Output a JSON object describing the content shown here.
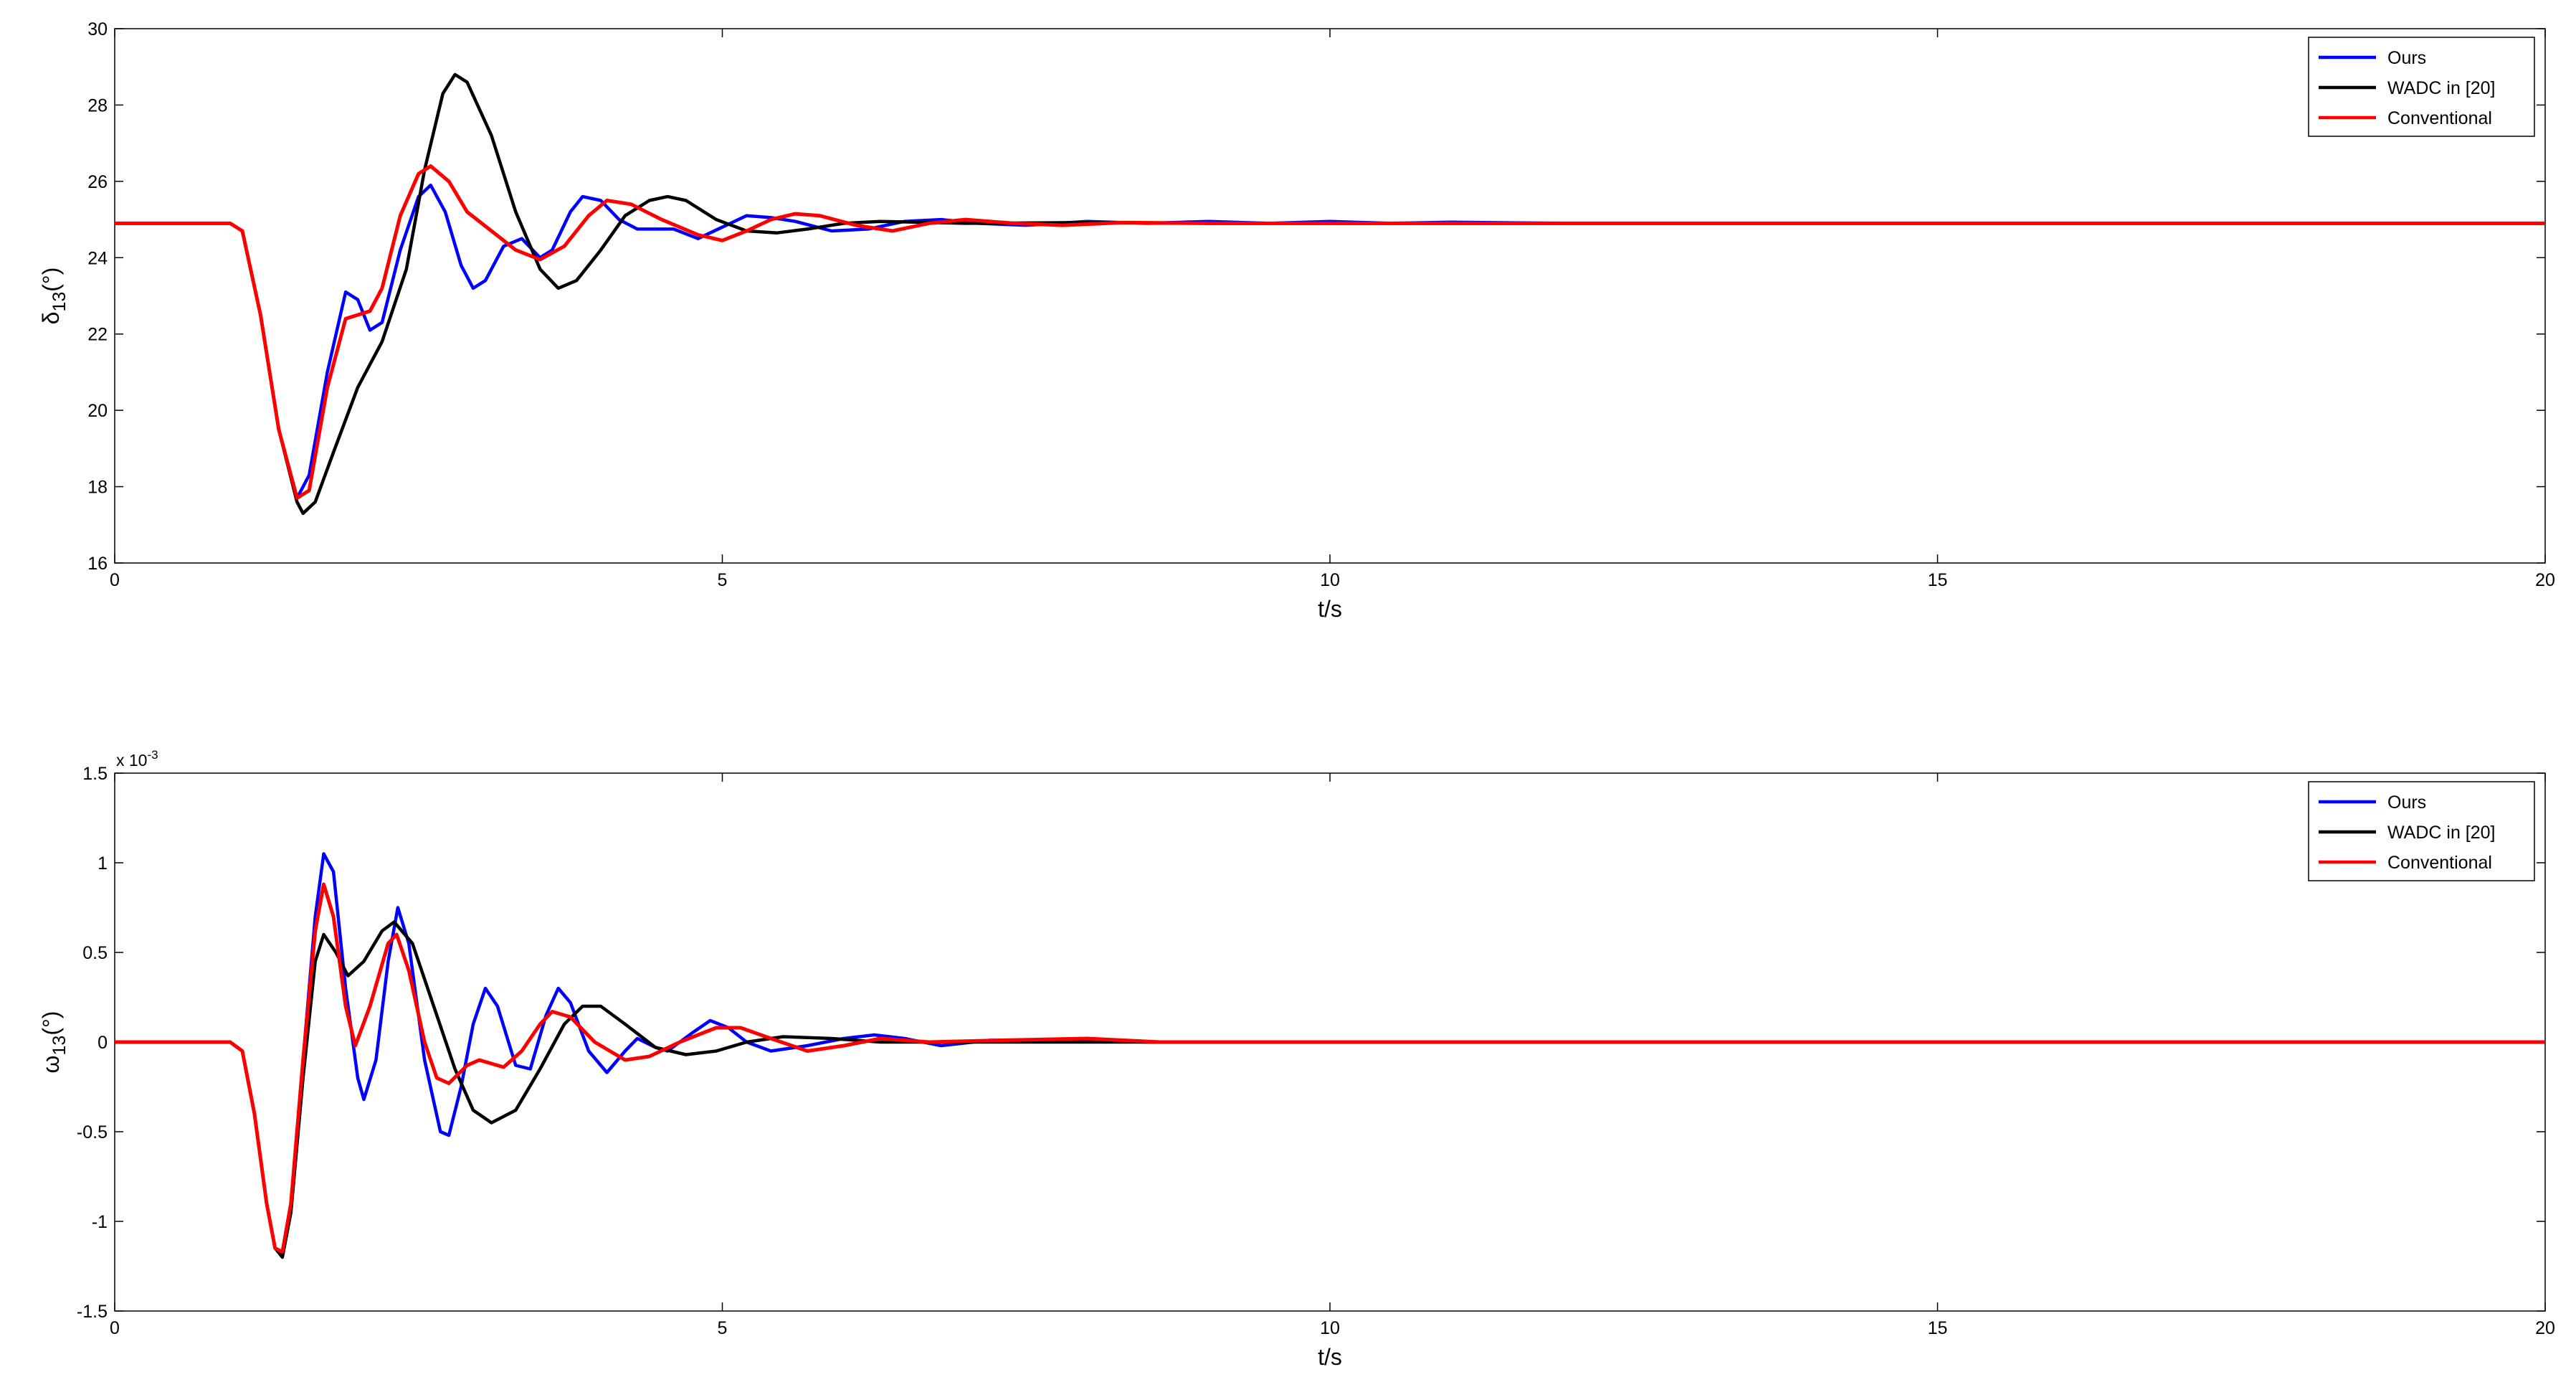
{
  "chart_data": [
    {
      "type": "line",
      "xlabel": "t/s",
      "ylabel": "δ",
      "ylabel_sub": "13",
      "ylabel_unit": "(°)",
      "xlim": [
        0,
        20
      ],
      "ylim": [
        16,
        30
      ],
      "x_ticks": [
        0,
        5,
        10,
        15,
        20
      ],
      "y_ticks": [
        16,
        18,
        20,
        22,
        24,
        26,
        28,
        30
      ],
      "grid": false,
      "legend_position": "top-right",
      "series": [
        {
          "name": "Ours",
          "color": "#0000ff",
          "points": [
            [
              0,
              24.9
            ],
            [
              0.95,
              24.9
            ],
            [
              1.05,
              24.7
            ],
            [
              1.2,
              22.5
            ],
            [
              1.35,
              19.5
            ],
            [
              1.5,
              17.7
            ],
            [
              1.6,
              18.3
            ],
            [
              1.75,
              21.0
            ],
            [
              1.9,
              23.1
            ],
            [
              2.0,
              22.9
            ],
            [
              2.1,
              22.1
            ],
            [
              2.2,
              22.3
            ],
            [
              2.35,
              24.2
            ],
            [
              2.5,
              25.6
            ],
            [
              2.6,
              25.9
            ],
            [
              2.72,
              25.2
            ],
            [
              2.85,
              23.8
            ],
            [
              2.95,
              23.2
            ],
            [
              3.05,
              23.4
            ],
            [
              3.2,
              24.3
            ],
            [
              3.35,
              24.5
            ],
            [
              3.5,
              24.0
            ],
            [
              3.6,
              24.2
            ],
            [
              3.75,
              25.2
            ],
            [
              3.85,
              25.6
            ],
            [
              4.0,
              25.5
            ],
            [
              4.15,
              25.0
            ],
            [
              4.3,
              24.75
            ],
            [
              4.6,
              24.75
            ],
            [
              4.8,
              24.5
            ],
            [
              5.0,
              24.8
            ],
            [
              5.2,
              25.1
            ],
            [
              5.4,
              25.05
            ],
            [
              5.6,
              24.95
            ],
            [
              5.9,
              24.7
            ],
            [
              6.2,
              24.75
            ],
            [
              6.5,
              24.95
            ],
            [
              6.8,
              25.0
            ],
            [
              7.1,
              24.9
            ],
            [
              7.5,
              24.85
            ],
            [
              8.0,
              24.95
            ],
            [
              8.5,
              24.9
            ],
            [
              9.0,
              24.95
            ],
            [
              9.5,
              24.9
            ],
            [
              10.0,
              24.95
            ],
            [
              10.5,
              24.9
            ],
            [
              11.0,
              24.93
            ],
            [
              12.0,
              24.9
            ],
            [
              20,
              24.9
            ]
          ]
        },
        {
          "name": "WADC in [20]",
          "color": "#000000",
          "points": [
            [
              0,
              24.9
            ],
            [
              0.95,
              24.9
            ],
            [
              1.05,
              24.7
            ],
            [
              1.2,
              22.5
            ],
            [
              1.35,
              19.5
            ],
            [
              1.5,
              17.6
            ],
            [
              1.55,
              17.3
            ],
            [
              1.65,
              17.6
            ],
            [
              1.8,
              18.9
            ],
            [
              2.0,
              20.6
            ],
            [
              2.2,
              21.8
            ],
            [
              2.4,
              23.7
            ],
            [
              2.55,
              26.3
            ],
            [
              2.7,
              28.3
            ],
            [
              2.8,
              28.8
            ],
            [
              2.9,
              28.6
            ],
            [
              3.1,
              27.2
            ],
            [
              3.3,
              25.2
            ],
            [
              3.5,
              23.7
            ],
            [
              3.65,
              23.2
            ],
            [
              3.8,
              23.4
            ],
            [
              4.0,
              24.2
            ],
            [
              4.2,
              25.1
            ],
            [
              4.4,
              25.5
            ],
            [
              4.55,
              25.6
            ],
            [
              4.7,
              25.5
            ],
            [
              4.95,
              25.0
            ],
            [
              5.2,
              24.7
            ],
            [
              5.45,
              24.65
            ],
            [
              5.7,
              24.75
            ],
            [
              6.0,
              24.9
            ],
            [
              6.3,
              24.95
            ],
            [
              7.0,
              24.9
            ],
            [
              8.0,
              24.92
            ],
            [
              9.0,
              24.9
            ],
            [
              20,
              24.9
            ]
          ]
        },
        {
          "name": "Conventional",
          "color": "#ff0000",
          "points": [
            [
              0,
              24.9
            ],
            [
              0.95,
              24.9
            ],
            [
              1.05,
              24.7
            ],
            [
              1.2,
              22.5
            ],
            [
              1.35,
              19.5
            ],
            [
              1.5,
              17.7
            ],
            [
              1.6,
              17.9
            ],
            [
              1.75,
              20.6
            ],
            [
              1.9,
              22.4
            ],
            [
              2.1,
              22.6
            ],
            [
              2.2,
              23.2
            ],
            [
              2.35,
              25.1
            ],
            [
              2.5,
              26.2
            ],
            [
              2.6,
              26.4
            ],
            [
              2.75,
              26.0
            ],
            [
              2.9,
              25.2
            ],
            [
              3.1,
              24.7
            ],
            [
              3.3,
              24.2
            ],
            [
              3.5,
              23.95
            ],
            [
              3.7,
              24.3
            ],
            [
              3.9,
              25.1
            ],
            [
              4.05,
              25.5
            ],
            [
              4.25,
              25.4
            ],
            [
              4.5,
              25.0
            ],
            [
              4.8,
              24.6
            ],
            [
              5.0,
              24.45
            ],
            [
              5.2,
              24.7
            ],
            [
              5.4,
              25.0
            ],
            [
              5.6,
              25.15
            ],
            [
              5.8,
              25.1
            ],
            [
              6.1,
              24.85
            ],
            [
              6.4,
              24.7
            ],
            [
              6.7,
              24.9
            ],
            [
              7.0,
              25.0
            ],
            [
              7.4,
              24.9
            ],
            [
              7.8,
              24.85
            ],
            [
              8.3,
              24.92
            ],
            [
              9.0,
              24.9
            ],
            [
              20,
              24.9
            ]
          ]
        }
      ]
    },
    {
      "type": "line",
      "xlabel": "t/s",
      "ylabel": "ω",
      "ylabel_sub": "13",
      "ylabel_unit": "(°)",
      "y_multiplier": "x 10",
      "y_multiplier_exp": "-3",
      "xlim": [
        0,
        20
      ],
      "ylim": [
        -1.5,
        1.5
      ],
      "x_ticks": [
        0,
        5,
        10,
        15,
        20
      ],
      "y_ticks": [
        -1.5,
        -1,
        -0.5,
        0,
        0.5,
        1,
        1.5
      ],
      "grid": false,
      "legend_position": "top-right",
      "series": [
        {
          "name": "Ours",
          "color": "#0000ff",
          "points": [
            [
              0,
              0
            ],
            [
              0.95,
              0
            ],
            [
              1.05,
              -0.05
            ],
            [
              1.15,
              -0.4
            ],
            [
              1.25,
              -0.9
            ],
            [
              1.32,
              -1.15
            ],
            [
              1.38,
              -1.17
            ],
            [
              1.45,
              -0.9
            ],
            [
              1.55,
              -0.1
            ],
            [
              1.65,
              0.7
            ],
            [
              1.72,
              1.05
            ],
            [
              1.8,
              0.95
            ],
            [
              1.9,
              0.3
            ],
            [
              2.0,
              -0.2
            ],
            [
              2.05,
              -0.32
            ],
            [
              2.15,
              -0.1
            ],
            [
              2.25,
              0.45
            ],
            [
              2.33,
              0.75
            ],
            [
              2.42,
              0.55
            ],
            [
              2.55,
              -0.1
            ],
            [
              2.68,
              -0.5
            ],
            [
              2.75,
              -0.52
            ],
            [
              2.85,
              -0.25
            ],
            [
              2.95,
              0.1
            ],
            [
              3.05,
              0.3
            ],
            [
              3.15,
              0.2
            ],
            [
              3.3,
              -0.13
            ],
            [
              3.42,
              -0.15
            ],
            [
              3.55,
              0.15
            ],
            [
              3.65,
              0.3
            ],
            [
              3.75,
              0.22
            ],
            [
              3.9,
              -0.05
            ],
            [
              4.05,
              -0.17
            ],
            [
              4.2,
              -0.05
            ],
            [
              4.3,
              0.02
            ],
            [
              4.45,
              -0.03
            ],
            [
              4.55,
              -0.05
            ],
            [
              4.75,
              0.05
            ],
            [
              4.9,
              0.12
            ],
            [
              5.05,
              0.08
            ],
            [
              5.2,
              0.0
            ],
            [
              5.4,
              -0.05
            ],
            [
              5.7,
              -0.02
            ],
            [
              6.0,
              0.02
            ],
            [
              6.25,
              0.04
            ],
            [
              6.5,
              0.02
            ],
            [
              6.8,
              -0.02
            ],
            [
              7.2,
              0.01
            ],
            [
              7.8,
              0.01
            ],
            [
              8.5,
              0.0
            ],
            [
              20,
              0
            ]
          ]
        },
        {
          "name": "WADC in [20]",
          "color": "#000000",
          "points": [
            [
              0,
              0
            ],
            [
              0.95,
              0
            ],
            [
              1.05,
              -0.05
            ],
            [
              1.15,
              -0.4
            ],
            [
              1.25,
              -0.9
            ],
            [
              1.32,
              -1.15
            ],
            [
              1.38,
              -1.2
            ],
            [
              1.45,
              -0.95
            ],
            [
              1.55,
              -0.2
            ],
            [
              1.65,
              0.45
            ],
            [
              1.72,
              0.6
            ],
            [
              1.82,
              0.5
            ],
            [
              1.92,
              0.37
            ],
            [
              2.05,
              0.45
            ],
            [
              2.2,
              0.62
            ],
            [
              2.3,
              0.67
            ],
            [
              2.45,
              0.55
            ],
            [
              2.65,
              0.15
            ],
            [
              2.8,
              -0.15
            ],
            [
              2.95,
              -0.38
            ],
            [
              3.1,
              -0.45
            ],
            [
              3.3,
              -0.38
            ],
            [
              3.5,
              -0.15
            ],
            [
              3.7,
              0.1
            ],
            [
              3.85,
              0.2
            ],
            [
              4.0,
              0.2
            ],
            [
              4.2,
              0.1
            ],
            [
              4.45,
              -0.03
            ],
            [
              4.7,
              -0.07
            ],
            [
              4.95,
              -0.05
            ],
            [
              5.2,
              0.0
            ],
            [
              5.5,
              0.03
            ],
            [
              5.9,
              0.02
            ],
            [
              6.3,
              0.0
            ],
            [
              7.0,
              0.0
            ],
            [
              8.0,
              0.0
            ],
            [
              20,
              0
            ]
          ]
        },
        {
          "name": "Conventional",
          "color": "#ff0000",
          "points": [
            [
              0,
              0
            ],
            [
              0.95,
              0
            ],
            [
              1.05,
              -0.05
            ],
            [
              1.15,
              -0.4
            ],
            [
              1.25,
              -0.9
            ],
            [
              1.32,
              -1.15
            ],
            [
              1.38,
              -1.17
            ],
            [
              1.45,
              -0.9
            ],
            [
              1.55,
              -0.1
            ],
            [
              1.65,
              0.62
            ],
            [
              1.72,
              0.88
            ],
            [
              1.8,
              0.7
            ],
            [
              1.9,
              0.2
            ],
            [
              1.98,
              -0.02
            ],
            [
              2.1,
              0.2
            ],
            [
              2.25,
              0.55
            ],
            [
              2.32,
              0.6
            ],
            [
              2.42,
              0.4
            ],
            [
              2.55,
              0.0
            ],
            [
              2.65,
              -0.2
            ],
            [
              2.75,
              -0.23
            ],
            [
              2.9,
              -0.13
            ],
            [
              3.0,
              -0.1
            ],
            [
              3.2,
              -0.14
            ],
            [
              3.35,
              -0.05
            ],
            [
              3.5,
              0.1
            ],
            [
              3.6,
              0.17
            ],
            [
              3.75,
              0.14
            ],
            [
              3.95,
              0.0
            ],
            [
              4.2,
              -0.1
            ],
            [
              4.4,
              -0.08
            ],
            [
              4.65,
              0.0
            ],
            [
              4.95,
              0.08
            ],
            [
              5.15,
              0.08
            ],
            [
              5.4,
              0.02
            ],
            [
              5.7,
              -0.05
            ],
            [
              6.0,
              -0.02
            ],
            [
              6.3,
              0.02
            ],
            [
              6.7,
              0.0
            ],
            [
              7.3,
              0.01
            ],
            [
              8.0,
              0.02
            ],
            [
              8.6,
              0.0
            ],
            [
              20,
              0
            ]
          ]
        }
      ]
    }
  ]
}
